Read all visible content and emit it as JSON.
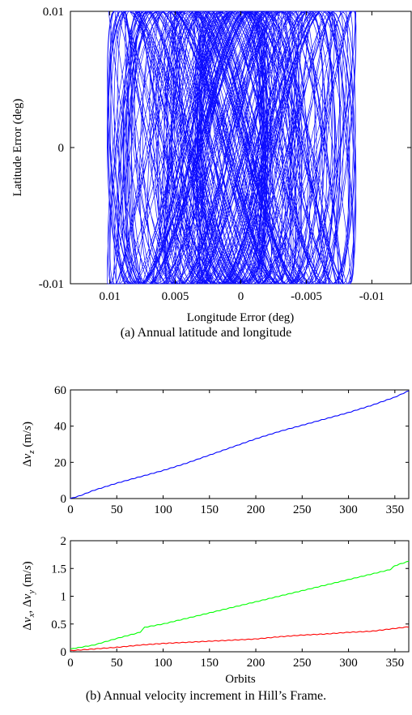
{
  "captions": {
    "a": "(a) Annual latitude and longitude",
    "b": "(b) Annual velocity increment in Hill’s Frame."
  },
  "chart_data": [
    {
      "type": "line",
      "xlabel": "Longitude Error (deg)",
      "ylabel": "Latitude Error (deg)",
      "xlim": [
        0.013,
        -0.013
      ],
      "ylim": [
        -0.01,
        0.01
      ],
      "x_reversed": true,
      "xticks": [
        "0.01",
        "0.005",
        "0",
        "-0.005",
        "-0.01"
      ],
      "xtick_values": [
        0.01,
        0.005,
        0,
        -0.005,
        -0.01
      ],
      "yticks": [
        "-0.01",
        "0",
        "0.01"
      ],
      "ytick_values": [
        -0.01,
        0,
        0.01
      ],
      "series": [
        {
          "color": "#0000ff",
          "description_values": {
            "lon_range": [
              -0.0088,
              0.0102
            ],
            "lat_range": [
              -0.01,
              0.01
            ],
            "orbits": 365
          }
        }
      ]
    },
    {
      "type": "line",
      "xlabel": "",
      "ylabel": "Δv_z (m/s)",
      "xlim": [
        0,
        365
      ],
      "ylim": [
        0,
        60
      ],
      "xticks": [
        "0",
        "50",
        "100",
        "150",
        "200",
        "250",
        "300",
        "350"
      ],
      "xtick_values": [
        0,
        50,
        100,
        150,
        200,
        250,
        300,
        350
      ],
      "yticks": [
        "0",
        "20",
        "40",
        "60"
      ],
      "ytick_values": [
        0,
        20,
        40,
        60
      ],
      "series": [
        {
          "color": "#0000ff",
          "x": [
            0,
            10,
            25,
            50,
            75,
            100,
            125,
            150,
            175,
            200,
            225,
            250,
            275,
            300,
            325,
            350,
            365
          ],
          "values": [
            0,
            1.5,
            4.5,
            8.5,
            12,
            15.5,
            19.5,
            24,
            28.5,
            33,
            37,
            40.5,
            44,
            47.5,
            51.5,
            56,
            59.5
          ]
        }
      ]
    },
    {
      "type": "line",
      "xlabel": "Orbits",
      "ylabel": "Δv_x, Δv_y (m/s)",
      "xlim": [
        0,
        365
      ],
      "ylim": [
        0,
        2
      ],
      "xticks": [
        "0",
        "50",
        "100",
        "150",
        "200",
        "250",
        "300",
        "350"
      ],
      "xtick_values": [
        0,
        50,
        100,
        150,
        200,
        250,
        300,
        350
      ],
      "yticks": [
        "0",
        "0.5",
        "1",
        "1.5",
        "2"
      ],
      "ytick_values": [
        0,
        0.5,
        1,
        1.5,
        2
      ],
      "series": [
        {
          "color": "#00ff00",
          "x": [
            0,
            25,
            50,
            75,
            80,
            100,
            125,
            150,
            175,
            200,
            225,
            250,
            275,
            300,
            325,
            345,
            350,
            365
          ],
          "values": [
            0.05,
            0.12,
            0.24,
            0.35,
            0.44,
            0.5,
            0.6,
            0.7,
            0.8,
            0.9,
            1.0,
            1.1,
            1.2,
            1.3,
            1.4,
            1.48,
            1.55,
            1.63
          ]
        },
        {
          "color": "#ff0000",
          "x": [
            0,
            25,
            50,
            75,
            100,
            125,
            150,
            175,
            200,
            225,
            250,
            275,
            300,
            325,
            350,
            365
          ],
          "values": [
            0.02,
            0.05,
            0.08,
            0.12,
            0.15,
            0.17,
            0.19,
            0.21,
            0.23,
            0.27,
            0.3,
            0.32,
            0.35,
            0.37,
            0.42,
            0.45
          ]
        }
      ]
    }
  ]
}
